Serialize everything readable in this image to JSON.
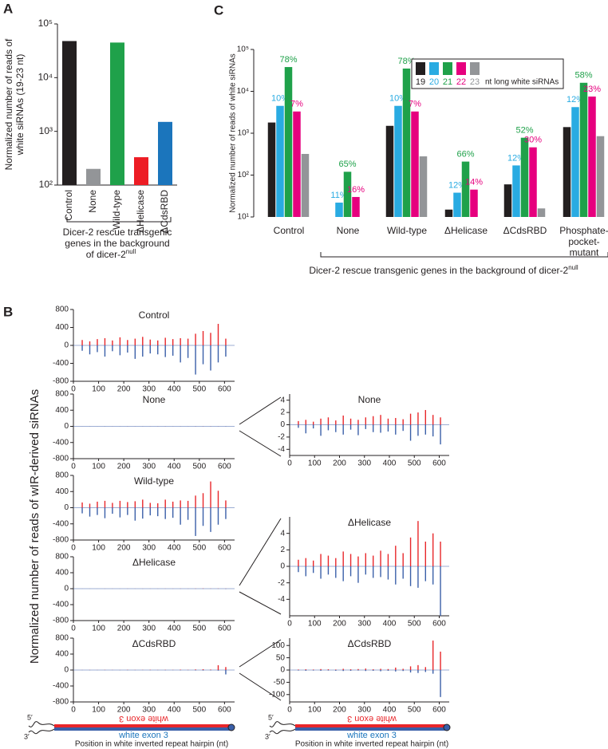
{
  "panel_labels": [
    "A",
    "B",
    "C"
  ],
  "panel_b_ylabel": "Normalized number of reads of wIR-derived siRNAs",
  "hairpin": {
    "five": "5′",
    "three": "3′",
    "sense_label": "white exon 3",
    "antisense_label": "white exon 3",
    "caption": "Position in white inverted repeat hairpin (nt)"
  },
  "chart_data": [
    {
      "type": "bar",
      "log_scale": true,
      "ylabel": [
        "Normalized number of reads of",
        "white siRNAs (19-23 nt)"
      ],
      "categories": [
        "Control",
        "None",
        "Wild-type",
        "ΔHelicase",
        "ΔCdsRBD"
      ],
      "values": [
        48000,
        200,
        45000,
        330,
        1500
      ],
      "colors": [
        "#231f20",
        "#939598",
        "#1fa14a",
        "#ed1c24",
        "#1b75bc"
      ],
      "ylim": [
        100,
        100000
      ],
      "yticks": [
        {
          "value": 100,
          "label": "10²"
        },
        {
          "value": 1000,
          "label": "10³"
        },
        {
          "value": 10000,
          "label": "10⁴"
        },
        {
          "value": 100000,
          "label": "10⁵"
        }
      ],
      "xlabel": [
        "Dicer-2 rescue transgenic",
        "genes in the background",
        "of dicer-2"
      ],
      "xlabel_sup": "null"
    },
    {
      "type": "grouped_bar",
      "log_scale": true,
      "ylabel": "Normalized number of reads of white siRNAs",
      "categories": [
        "Control",
        "None",
        "Wild-type",
        "ΔHelicase",
        "ΔCdsRBD",
        "Phosphate-\npocket-\nmutant"
      ],
      "series": [
        {
          "name": "19",
          "color": "#231f20",
          "values": [
            1800,
            null,
            1500,
            15,
            60,
            1400
          ]
        },
        {
          "name": "20",
          "color": "#29abe2",
          "values": [
            4500,
            22,
            4500,
            38,
            170,
            4200
          ],
          "share_labels": [
            "10%",
            "11%",
            "10%",
            "12%",
            "12%",
            "12%"
          ]
        },
        {
          "name": "21",
          "color": "#1fa14a",
          "values": [
            38000,
            120,
            35000,
            210,
            780,
            16000
          ],
          "share_labels": [
            "78%",
            "65%",
            "78%",
            "66%",
            "52%",
            "58%"
          ]
        },
        {
          "name": "22",
          "color": "#e6007e",
          "values": [
            3300,
            30,
            3300,
            45,
            460,
            7500
          ],
          "share_labels": [
            "7%",
            "16%",
            "7%",
            "14%",
            "30%",
            "23%"
          ]
        },
        {
          "name": "23",
          "color": "#939598",
          "values": [
            320,
            null,
            280,
            null,
            16,
            850
          ]
        }
      ],
      "legend_suffix": "nt long white siRNAs",
      "ylim": [
        10,
        100000
      ],
      "yticks": [
        {
          "value": 10,
          "label": "10¹"
        },
        {
          "value": 100,
          "label": "10²"
        },
        {
          "value": 1000,
          "label": "10³"
        },
        {
          "value": 10000,
          "label": "10⁴"
        },
        {
          "value": 100000,
          "label": "10⁵"
        }
      ],
      "xlabel": "Dicer-2 rescue transgenic genes in the background of dicer-2",
      "xlabel_sup": "null"
    },
    {
      "type": "mirror",
      "title": "Control",
      "x": [
        35,
        65,
        95,
        125,
        155,
        185,
        215,
        245,
        275,
        305,
        335,
        365,
        395,
        425,
        455,
        485,
        515,
        545,
        575,
        605
      ],
      "series": [
        {
          "color": "#e8262a",
          "values": [
            120,
            90,
            140,
            160,
            110,
            180,
            120,
            150,
            190,
            130,
            110,
            170,
            140,
            160,
            150,
            260,
            320,
            280,
            480,
            150
          ]
        },
        {
          "color": "#3a5fa8",
          "values": [
            -120,
            -200,
            -150,
            -250,
            -130,
            -220,
            -160,
            -300,
            -250,
            -180,
            -200,
            -260,
            -230,
            -380,
            -280,
            -650,
            -420,
            -560,
            -380,
            -250
          ]
        }
      ],
      "xlim": [
        0,
        640
      ],
      "xticks": [
        0,
        100,
        200,
        300,
        400,
        500,
        600
      ],
      "ylim": [
        -800,
        800
      ],
      "yticks": [
        -800,
        -400,
        0,
        400,
        800
      ]
    },
    {
      "type": "mirror",
      "title": "None",
      "x": [
        35,
        65,
        95,
        125,
        155,
        185,
        215,
        245,
        275,
        305,
        335,
        365,
        395,
        425,
        455,
        485,
        515,
        545,
        575,
        605
      ],
      "series": [
        {
          "color": "#e8262a",
          "values": [
            0.6,
            0.8,
            0.5,
            1,
            1.2,
            0.7,
            1.5,
            1,
            0.8,
            1.2,
            1.4,
            1.6,
            1,
            1.1,
            0.9,
            1.8,
            2,
            2.4,
            1.6,
            1.2
          ]
        },
        {
          "color": "#3a5fa8",
          "values": [
            -0.5,
            -1.4,
            -0.6,
            -1.8,
            -0.9,
            -1.2,
            -1.6,
            -0.8,
            -1.7,
            -0.7,
            -1.2,
            -1.3,
            -1.1,
            -1.6,
            -1,
            -2.6,
            -1.8,
            -1.6,
            -1.9,
            -3.2
          ]
        }
      ],
      "xlim": [
        0,
        640
      ],
      "xticks": [
        0,
        100,
        200,
        300,
        400,
        500,
        600
      ],
      "ylim": [
        -800,
        800
      ],
      "yticks": [
        -800,
        -400,
        0,
        400,
        800
      ]
    },
    {
      "type": "mirror",
      "title": "Wild-type",
      "x": [
        35,
        65,
        95,
        125,
        155,
        185,
        215,
        245,
        275,
        305,
        335,
        365,
        395,
        425,
        455,
        485,
        515,
        545,
        575,
        605
      ],
      "series": [
        {
          "color": "#e8262a",
          "values": [
            130,
            100,
            150,
            170,
            120,
            170,
            140,
            160,
            200,
            120,
            110,
            200,
            150,
            180,
            170,
            300,
            360,
            650,
            420,
            180
          ]
        },
        {
          "color": "#3a5fa8",
          "values": [
            -140,
            -220,
            -180,
            -260,
            -150,
            -240,
            -180,
            -320,
            -270,
            -190,
            -210,
            -280,
            -250,
            -420,
            -300,
            -700,
            -450,
            -600,
            -420,
            -280
          ]
        }
      ],
      "xlim": [
        0,
        640
      ],
      "xticks": [
        0,
        100,
        200,
        300,
        400,
        500,
        600
      ],
      "ylim": [
        -800,
        800
      ],
      "yticks": [
        -800,
        -400,
        0,
        400,
        800
      ]
    },
    {
      "type": "mirror",
      "title": "ΔHelicase",
      "x": [
        35,
        65,
        95,
        125,
        155,
        185,
        215,
        245,
        275,
        305,
        335,
        365,
        395,
        425,
        455,
        485,
        515,
        545,
        575,
        605
      ],
      "series": [
        {
          "color": "#e8262a",
          "values": [
            0.8,
            1,
            0.7,
            1.5,
            1.3,
            1,
            1.8,
            1.5,
            1.2,
            1.6,
            1.3,
            1.9,
            1.5,
            2.5,
            1.6,
            3.5,
            5.5,
            3,
            4,
            3
          ]
        },
        {
          "color": "#3a5fa8",
          "values": [
            -0.7,
            -1.2,
            -0.8,
            -1.5,
            -1,
            -1.4,
            -1.8,
            -1.2,
            -2,
            -1,
            -1.4,
            -1.3,
            -1.6,
            -2.2,
            -1.5,
            -2.4,
            -2.6,
            -1.8,
            -2.2,
            -6
          ]
        }
      ],
      "xlim": [
        0,
        640
      ],
      "xticks": [
        0,
        100,
        200,
        300,
        400,
        500,
        600
      ],
      "ylim": [
        -800,
        800
      ],
      "yticks": [
        -800,
        -400,
        0,
        400,
        800
      ]
    },
    {
      "type": "mirror",
      "title": "ΔCdsRBD",
      "x": [
        35,
        65,
        95,
        125,
        155,
        185,
        215,
        245,
        275,
        305,
        335,
        365,
        395,
        425,
        455,
        485,
        515,
        545,
        575,
        605
      ],
      "series": [
        {
          "color": "#e8262a",
          "values": [
            2,
            3,
            2,
            4,
            3,
            2,
            5,
            3,
            4,
            6,
            3,
            5,
            4,
            10,
            5,
            15,
            20,
            12,
            120,
            75
          ]
        },
        {
          "color": "#3a5fa8",
          "values": [
            -2,
            -3,
            -2,
            -3,
            -2,
            -3,
            -4,
            -3,
            -2,
            -4,
            -3,
            -5,
            -3,
            -6,
            -4,
            -10,
            -12,
            -8,
            -15,
            -110
          ]
        }
      ],
      "xlim": [
        0,
        640
      ],
      "xticks": [
        0,
        100,
        200,
        300,
        400,
        500,
        600
      ],
      "ylim": [
        -800,
        800
      ],
      "yticks": [
        -800,
        -400,
        0,
        400,
        800
      ]
    },
    {
      "type": "mirror",
      "title": "None",
      "x": [
        35,
        65,
        95,
        125,
        155,
        185,
        215,
        245,
        275,
        305,
        335,
        365,
        395,
        425,
        455,
        485,
        515,
        545,
        575,
        605
      ],
      "series": [
        {
          "color": "#e8262a",
          "values": [
            0.6,
            0.8,
            0.5,
            1,
            1.2,
            0.7,
            1.5,
            1,
            0.8,
            1.2,
            1.4,
            1.6,
            1,
            1.1,
            0.9,
            1.8,
            2,
            2.4,
            1.6,
            1.2
          ]
        },
        {
          "color": "#3a5fa8",
          "values": [
            -0.5,
            -1.4,
            -0.6,
            -1.8,
            -0.9,
            -1.2,
            -1.6,
            -0.8,
            -1.7,
            -0.7,
            -1.2,
            -1.3,
            -1.1,
            -1.6,
            -1,
            -2.6,
            -1.8,
            -1.6,
            -1.9,
            -3.2
          ]
        }
      ],
      "xlim": [
        0,
        640
      ],
      "xticks": [
        0,
        100,
        200,
        300,
        400,
        500,
        600
      ],
      "ylim": [
        -5,
        5
      ],
      "yticks": [
        -4,
        -2,
        0,
        2,
        4
      ]
    },
    {
      "type": "mirror",
      "title": "ΔHelicase",
      "x": [
        35,
        65,
        95,
        125,
        155,
        185,
        215,
        245,
        275,
        305,
        335,
        365,
        395,
        425,
        455,
        485,
        515,
        545,
        575,
        605
      ],
      "series": [
        {
          "color": "#e8262a",
          "values": [
            0.8,
            1,
            0.7,
            1.5,
            1.3,
            1,
            1.8,
            1.5,
            1.2,
            1.6,
            1.3,
            1.9,
            1.5,
            2.5,
            1.6,
            3.5,
            5.5,
            3,
            4,
            3
          ]
        },
        {
          "color": "#3a5fa8",
          "values": [
            -0.7,
            -1.2,
            -0.8,
            -1.5,
            -1,
            -1.4,
            -1.8,
            -1.2,
            -2,
            -1,
            -1.4,
            -1.3,
            -1.6,
            -2.2,
            -1.5,
            -2.4,
            -2.6,
            -1.8,
            -2.2,
            -6
          ]
        }
      ],
      "xlim": [
        0,
        640
      ],
      "xticks": [
        0,
        100,
        200,
        300,
        400,
        500,
        600
      ],
      "ylim": [
        -6,
        6
      ],
      "yticks": [
        -4,
        -2,
        0,
        2,
        4
      ]
    },
    {
      "type": "mirror",
      "title": "ΔCdsRBD",
      "x": [
        35,
        65,
        95,
        125,
        155,
        185,
        215,
        245,
        275,
        305,
        335,
        365,
        395,
        425,
        455,
        485,
        515,
        545,
        575,
        605
      ],
      "series": [
        {
          "color": "#e8262a",
          "values": [
            2,
            3,
            2,
            4,
            3,
            2,
            5,
            3,
            4,
            6,
            3,
            5,
            4,
            10,
            5,
            15,
            20,
            12,
            120,
            75
          ]
        },
        {
          "color": "#3a5fa8",
          "values": [
            -2,
            -3,
            -2,
            -3,
            -2,
            -3,
            -4,
            -3,
            -2,
            -4,
            -3,
            -5,
            -3,
            -6,
            -4,
            -10,
            -12,
            -8,
            -15,
            -110
          ]
        }
      ],
      "xlim": [
        0,
        640
      ],
      "xticks": [
        0,
        100,
        200,
        300,
        400,
        500,
        600
      ],
      "ylim": [
        -130,
        130
      ],
      "yticks": [
        -100,
        -50,
        0,
        50,
        100
      ]
    }
  ]
}
